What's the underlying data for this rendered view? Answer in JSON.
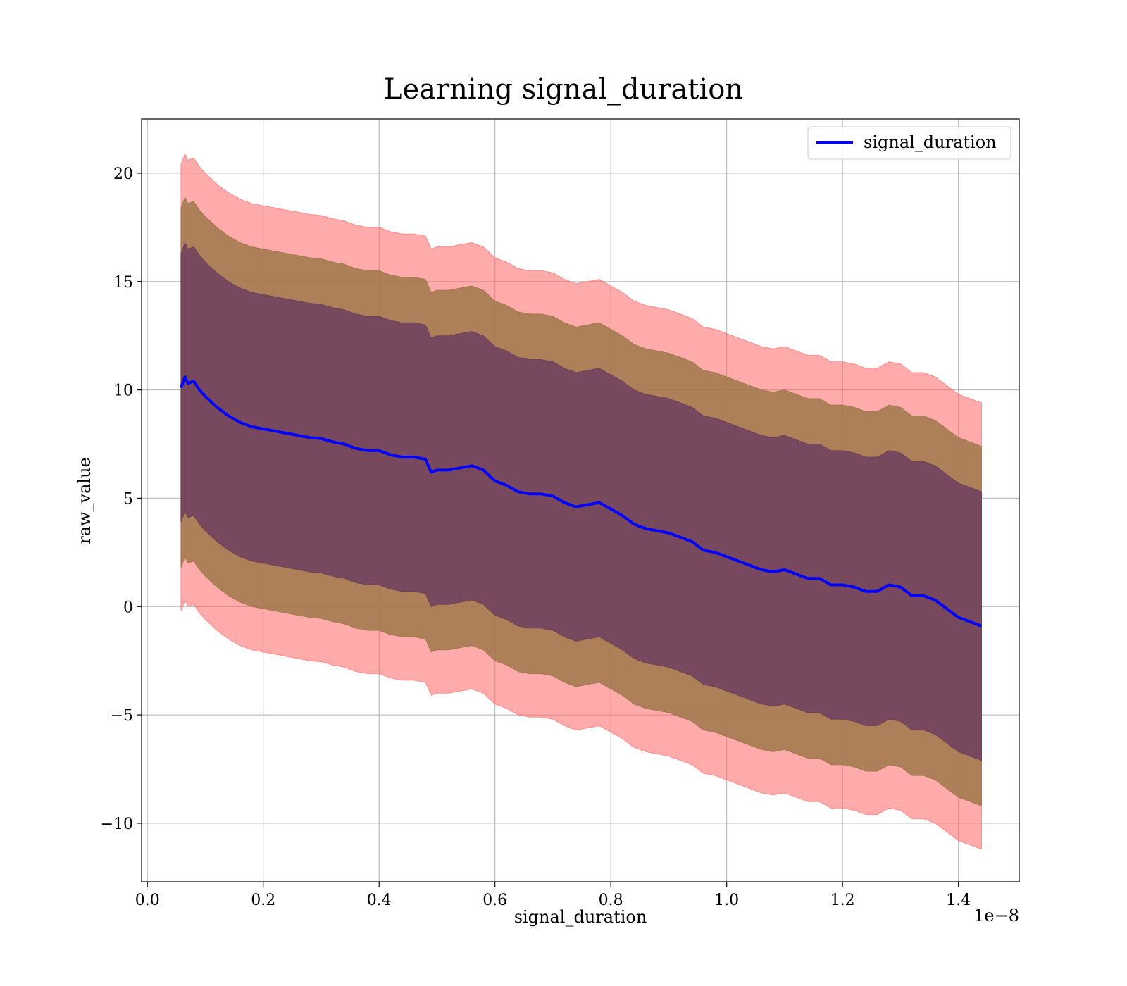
{
  "chart_data": {
    "type": "line",
    "title": "Learning signal_duration",
    "xlabel": "signal_duration",
    "ylabel": "raw_value",
    "x_scale_label": "1e−8",
    "xlim": [
      -0.01,
      1.505
    ],
    "ylim": [
      -12.7,
      22.5
    ],
    "x_ticks": [
      0.0,
      0.2,
      0.4,
      0.6,
      0.8,
      1.0,
      1.2,
      1.4
    ],
    "x_tick_labels": [
      "0.0",
      "0.2",
      "0.4",
      "0.6",
      "0.8",
      "1.0",
      "1.2",
      "1.4"
    ],
    "y_ticks": [
      -10,
      -5,
      0,
      5,
      10,
      15,
      20
    ],
    "y_tick_labels": [
      "−10",
      "−5",
      "0",
      "5",
      "10",
      "15",
      "20"
    ],
    "grid": true,
    "legend_position": "top-right",
    "colors": {
      "line": "#0000ff",
      "band_outer": "#ff6666",
      "band_middle": "#a0784a",
      "band_inner": "#6f3f5f"
    },
    "series": [
      {
        "name": "signal_duration",
        "x": [
          0.058,
          0.065,
          0.07,
          0.08,
          0.09,
          0.1,
          0.12,
          0.14,
          0.16,
          0.18,
          0.2,
          0.22,
          0.24,
          0.26,
          0.28,
          0.3,
          0.32,
          0.34,
          0.36,
          0.38,
          0.4,
          0.42,
          0.44,
          0.46,
          0.48,
          0.49,
          0.5,
          0.52,
          0.54,
          0.56,
          0.58,
          0.6,
          0.62,
          0.64,
          0.66,
          0.68,
          0.7,
          0.72,
          0.74,
          0.76,
          0.78,
          0.8,
          0.82,
          0.84,
          0.86,
          0.88,
          0.9,
          0.92,
          0.94,
          0.96,
          0.98,
          1.0,
          1.02,
          1.04,
          1.06,
          1.08,
          1.1,
          1.12,
          1.14,
          1.16,
          1.18,
          1.2,
          1.22,
          1.24,
          1.26,
          1.28,
          1.3,
          1.32,
          1.34,
          1.36,
          1.38,
          1.4,
          1.42,
          1.44
        ],
        "y": [
          10.1,
          10.6,
          10.3,
          10.4,
          10.0,
          9.7,
          9.2,
          8.8,
          8.5,
          8.3,
          8.2,
          8.1,
          8.0,
          7.9,
          7.8,
          7.75,
          7.6,
          7.5,
          7.3,
          7.2,
          7.2,
          7.0,
          6.9,
          6.9,
          6.8,
          6.2,
          6.3,
          6.3,
          6.4,
          6.5,
          6.3,
          5.8,
          5.6,
          5.3,
          5.2,
          5.2,
          5.1,
          4.8,
          4.6,
          4.7,
          4.8,
          4.5,
          4.2,
          3.8,
          3.6,
          3.5,
          3.4,
          3.2,
          3.0,
          2.6,
          2.5,
          2.3,
          2.1,
          1.9,
          1.7,
          1.6,
          1.7,
          1.5,
          1.3,
          1.3,
          1.0,
          1.0,
          0.9,
          0.7,
          0.7,
          1.0,
          0.9,
          0.5,
          0.5,
          0.3,
          -0.1,
          -0.5,
          -0.7,
          -0.9
        ],
        "band_inner_halfwidth": 6.2,
        "band_middle_halfwidth": 8.3,
        "band_outer_halfwidth": 10.3
      }
    ]
  },
  "legend": {
    "label": "signal_duration"
  }
}
